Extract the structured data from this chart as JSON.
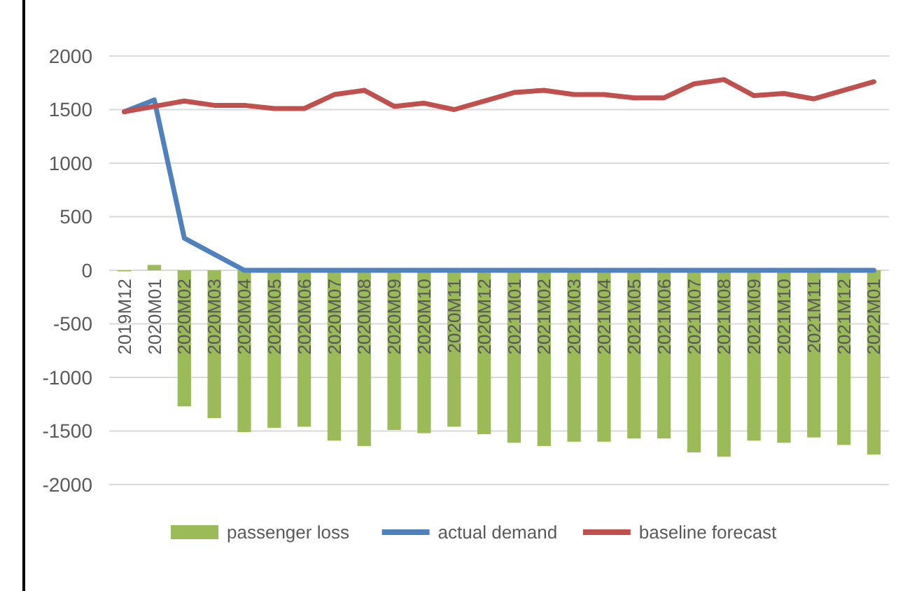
{
  "chart_data": {
    "type": "bar",
    "categories": [
      "2019M12",
      "2020M01",
      "2020M02",
      "2020M03",
      "2020M04",
      "2020M05",
      "2020M06",
      "2020M07",
      "2020M08",
      "2020M09",
      "2020M10",
      "2020M11",
      "2020M12",
      "2021M01",
      "2021M02",
      "2021M03",
      "2021M04",
      "2021M05",
      "2021M06",
      "2021M07",
      "2021M08",
      "2021M09",
      "2021M10",
      "2021M11",
      "2021M12",
      "2022M01"
    ],
    "series": [
      {
        "name": "passenger loss",
        "color": "#9bbb59",
        "values": [
          -10,
          50,
          -1270,
          -1380,
          -1510,
          -1470,
          -1460,
          -1590,
          -1640,
          -1490,
          -1520,
          -1460,
          -1530,
          -1610,
          -1640,
          -1600,
          -1600,
          -1570,
          -1570,
          -1700,
          -1740,
          -1590,
          -1610,
          -1560,
          -1630,
          -1720
        ]
      },
      {
        "name": "actual demand",
        "type": "line",
        "color": "#4f81bd",
        "values": [
          1480,
          1590,
          300,
          150,
          0,
          0,
          0,
          0,
          0,
          0,
          0,
          0,
          0,
          0,
          0,
          0,
          0,
          0,
          0,
          0,
          0,
          0,
          0,
          0,
          0,
          0
        ]
      },
      {
        "name": "baseline forecast",
        "type": "line",
        "color": "#c0504d",
        "values": [
          1480,
          1530,
          1580,
          1540,
          1540,
          1510,
          1510,
          1640,
          1680,
          1530,
          1560,
          1500,
          1580,
          1660,
          1680,
          1640,
          1640,
          1610,
          1610,
          1740,
          1780,
          1630,
          1650,
          1600,
          1680,
          1760
        ]
      }
    ],
    "ylim": [
      -2000,
      2000
    ],
    "yticks": [
      -2000,
      -1500,
      -1000,
      -500,
      0,
      500,
      1000,
      1500,
      2000
    ],
    "grid": "y",
    "legend": "bottom"
  }
}
